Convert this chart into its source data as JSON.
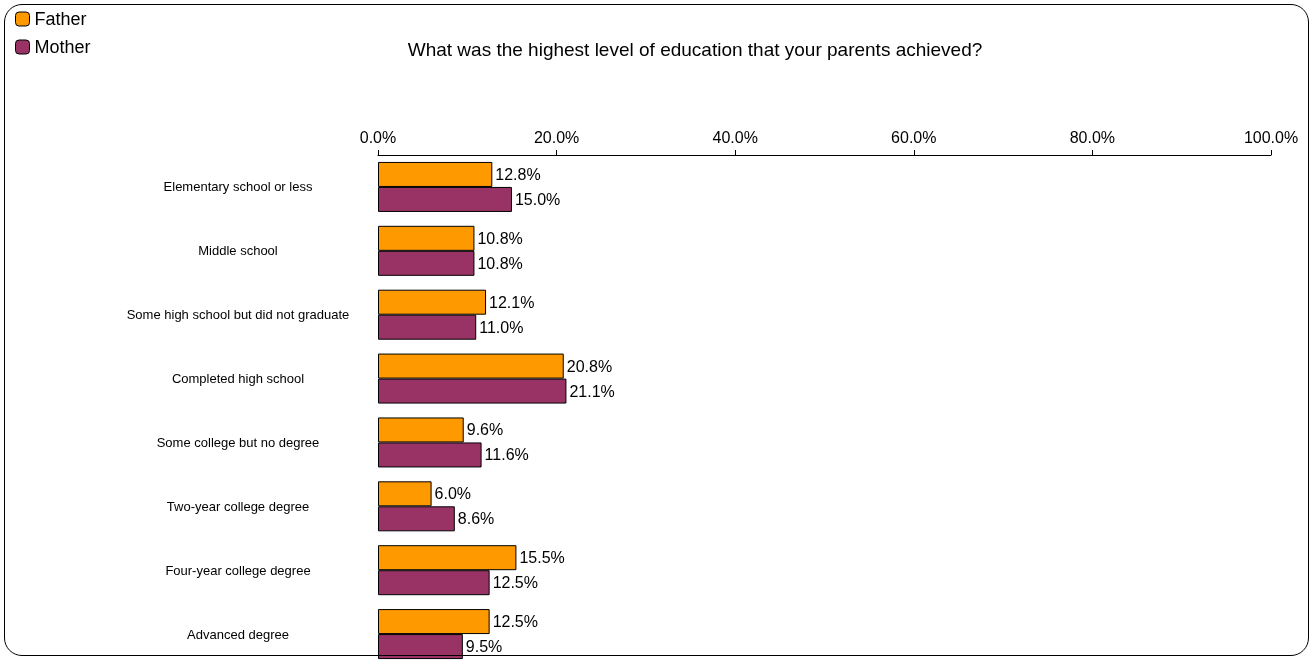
{
  "chart_data": {
    "type": "bar",
    "orientation": "horizontal",
    "title": "What was the highest level of education that your parents achieved?",
    "categories": [
      "Elementary school or less",
      "Middle school",
      "Some high school but did not graduate",
      "Completed high school",
      "Some college but no degree",
      "Two-year college degree",
      "Four-year college degree",
      "Advanced degree"
    ],
    "series": [
      {
        "name": "Father",
        "color": "#ff9900",
        "values": [
          12.8,
          10.8,
          12.1,
          20.8,
          9.6,
          6.0,
          15.5,
          12.5
        ],
        "value_labels": [
          "12.8%",
          "10.8%",
          "12.1%",
          "20.8%",
          "9.6%",
          "6.0%",
          "15.5%",
          "12.5%"
        ]
      },
      {
        "name": "Mother",
        "color": "#993366",
        "values": [
          15.0,
          10.8,
          11.0,
          21.1,
          11.6,
          8.6,
          12.5,
          9.5
        ],
        "value_labels": [
          "15.0%",
          "10.8%",
          "11.0%",
          "21.1%",
          "11.6%",
          "8.6%",
          "12.5%",
          "9.5%"
        ]
      }
    ],
    "xlim": [
      0,
      100
    ],
    "xticks": [
      {
        "value": 0,
        "label": "0.0%"
      },
      {
        "value": 20,
        "label": "20.0%"
      },
      {
        "value": 40,
        "label": "40.0%"
      },
      {
        "value": 60,
        "label": "60.0%"
      },
      {
        "value": 80,
        "label": "80.0%"
      },
      {
        "value": 100,
        "label": "100.0%"
      }
    ],
    "grid": false,
    "legend": "top left"
  }
}
